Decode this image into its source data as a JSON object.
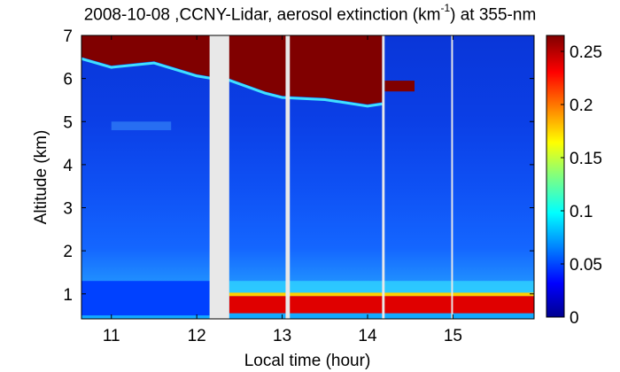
{
  "chart_data": {
    "type": "heatmap",
    "title": {
      "prefix": "2008-10-08 ,CCNY-Lidar, aerosol extinction (km",
      "sup": "-1",
      "suffix": ") at 355-nm"
    },
    "xlabel": "Local time (hour)",
    "ylabel": "Altitude (km)",
    "xlim": [
      10.65,
      15.95
    ],
    "ylim": [
      0.42,
      7
    ],
    "x_ticks": [
      11,
      12,
      13,
      14,
      15
    ],
    "y_ticks": [
      1,
      2,
      3,
      4,
      5,
      6,
      7
    ],
    "colorbar": {
      "range": [
        0,
        0.265
      ],
      "ticks": [
        0,
        0.05,
        0.1,
        0.15,
        0.2,
        0.25
      ],
      "tick_labels": [
        "0",
        "0.05",
        "0.1",
        "0.15",
        "0.2",
        "0.25"
      ],
      "colormap": "jet"
    },
    "data_gaps": [
      [
        12.15,
        12.38
      ],
      [
        13.04,
        13.09
      ],
      [
        14.17,
        14.2
      ],
      [
        14.98,
        15.0
      ]
    ],
    "features": {
      "boundary_layer": [
        {
          "x_start": 10.65,
          "x_end": 12.15,
          "altitude_km": [
            0.5,
            1.3
          ],
          "extinction": 0.05
        },
        {
          "x_start": 12.38,
          "x_end": 15.95,
          "altitude_km": [
            0.55,
            0.95
          ],
          "extinction": 0.24
        }
      ],
      "cloud_layer": [
        {
          "x": 10.65,
          "base_km": 6.5
        },
        {
          "x": 11.0,
          "base_km": 6.3
        },
        {
          "x": 11.5,
          "base_km": 6.4
        },
        {
          "x": 12.0,
          "base_km": 6.1
        },
        {
          "x": 12.15,
          "base_km": 6.05
        },
        {
          "x": 12.38,
          "base_km": 6.0
        },
        {
          "x": 12.8,
          "base_km": 5.7
        },
        {
          "x": 13.0,
          "base_km": 5.6
        },
        {
          "x": 13.5,
          "base_km": 5.55
        },
        {
          "x": 14.0,
          "base_km": 5.4
        },
        {
          "x": 14.17,
          "base_km": 5.45
        }
      ],
      "cloud_patch_late": {
        "x_start": 14.2,
        "x_end": 14.55,
        "base_km": 5.7,
        "top_km": 5.95
      }
    }
  }
}
